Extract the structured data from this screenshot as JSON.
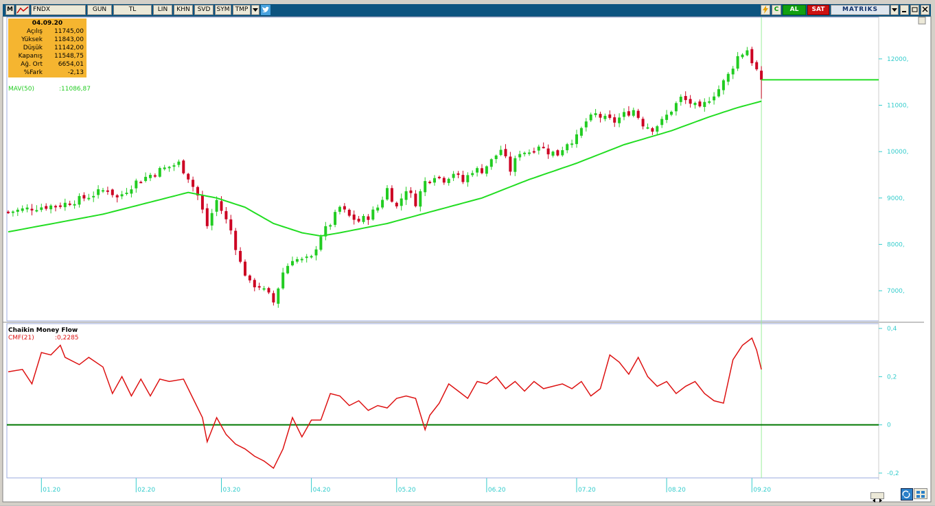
{
  "toolbar": {
    "symbol_box": "M",
    "symbol": "FNDX",
    "buttons": [
      "GUN",
      "TL",
      "LIN",
      "KHN",
      "SVD",
      "SYM",
      "TMP"
    ],
    "buy_label": "AL",
    "sell_label": "SAT",
    "brand": "MATRIKS",
    "c_label": "C"
  },
  "colors": {
    "background": "#ffffff",
    "up": "#22cc22",
    "down": "#cc0022",
    "ma": "#22dd22",
    "cmf": "#dd1111",
    "zero_line": "#007700",
    "axis_text": "#33cccc",
    "toolbar": "#0d5480",
    "info_box": "#f5b530"
  },
  "info_box": {
    "date": "04.09.20",
    "rows": [
      {
        "k": "Açılış",
        "v": "11745,00"
      },
      {
        "k": "Yüksek",
        "v": "11843,00"
      },
      {
        "k": "Düşük",
        "v": "11142,00"
      },
      {
        "k": "Kapanış",
        "v": "11548,75"
      },
      {
        "k": "Ağ. Ort",
        "v": "6654,01"
      },
      {
        "k": "%Fark",
        "v": "-2,13"
      }
    ]
  },
  "ma_label": {
    "name": "MAV(50)",
    "value": ":11086,87"
  },
  "indicator": {
    "title": "Chaikin Money Flow",
    "name": "CMF(21)",
    "value": ":0,2285"
  },
  "chart_data": [
    {
      "type": "candlestick",
      "symbol": "FNDX",
      "y_axis_ticks": [
        "7000,",
        "8000,",
        "9000,",
        "10000,",
        "11000,",
        "12000,"
      ],
      "ylim": [
        6350,
        12900
      ],
      "x_axis_ticks": [
        "01.20",
        "02.20",
        "03.20",
        "04.20",
        "05.20",
        "06.20",
        "07.20",
        "08.20",
        "09.20"
      ],
      "x_tick_index": [
        7,
        27,
        45,
        64,
        82,
        101,
        120,
        139,
        157
      ],
      "close_points": [
        [
          0,
          8700
        ],
        [
          6,
          8800
        ],
        [
          11,
          8850
        ],
        [
          16,
          9000
        ],
        [
          21,
          9200
        ],
        [
          23,
          9000
        ],
        [
          27,
          9350
        ],
        [
          32,
          9600
        ],
        [
          36,
          9750
        ],
        [
          38,
          9450
        ],
        [
          40,
          9050
        ],
        [
          42,
          8400
        ],
        [
          44,
          8950
        ],
        [
          47,
          8300
        ],
        [
          49,
          7600
        ],
        [
          51,
          7150
        ],
        [
          53,
          7100
        ],
        [
          55,
          6900
        ],
        [
          56,
          6750
        ],
        [
          58,
          7400
        ],
        [
          60,
          7700
        ],
        [
          62,
          7650
        ],
        [
          64,
          7700
        ],
        [
          66,
          8200
        ],
        [
          68,
          8450
        ],
        [
          70,
          8800
        ],
        [
          72,
          8600
        ],
        [
          74,
          8500
        ],
        [
          76,
          8600
        ],
        [
          78,
          8800
        ],
        [
          80,
          9200
        ],
        [
          82,
          8800
        ],
        [
          84,
          9200
        ],
        [
          86,
          8900
        ],
        [
          88,
          9350
        ],
        [
          90,
          9500
        ],
        [
          92,
          9400
        ],
        [
          94,
          9550
        ],
        [
          96,
          9350
        ],
        [
          98,
          9600
        ],
        [
          100,
          9600
        ],
        [
          102,
          9800
        ],
        [
          104,
          10050
        ],
        [
          106,
          9600
        ],
        [
          108,
          10000
        ],
        [
          110,
          10000
        ],
        [
          112,
          10150
        ],
        [
          114,
          10000
        ],
        [
          116,
          9950
        ],
        [
          118,
          10200
        ],
        [
          120,
          10300
        ],
        [
          122,
          10650
        ],
        [
          124,
          10800
        ],
        [
          126,
          10700
        ],
        [
          128,
          10650
        ],
        [
          130,
          10800
        ],
        [
          132,
          10900
        ],
        [
          134,
          10600
        ],
        [
          136,
          10500
        ],
        [
          138,
          10650
        ],
        [
          140,
          10900
        ],
        [
          142,
          11150
        ],
        [
          144,
          11050
        ],
        [
          146,
          10900
        ],
        [
          148,
          11150
        ],
        [
          150,
          11350
        ],
        [
          152,
          11650
        ],
        [
          154,
          12050
        ],
        [
          156,
          12200
        ],
        [
          157,
          11950
        ],
        [
          158,
          11750
        ],
        [
          159,
          11550
        ]
      ],
      "ma": {
        "name": "MAV(50)",
        "points": [
          [
            0,
            8270
          ],
          [
            20,
            8650
          ],
          [
            38,
            9120
          ],
          [
            44,
            9000
          ],
          [
            50,
            8800
          ],
          [
            56,
            8450
          ],
          [
            62,
            8250
          ],
          [
            66,
            8180
          ],
          [
            70,
            8250
          ],
          [
            80,
            8450
          ],
          [
            100,
            9000
          ],
          [
            110,
            9400
          ],
          [
            120,
            9750
          ],
          [
            130,
            10150
          ],
          [
            140,
            10450
          ],
          [
            148,
            10750
          ],
          [
            154,
            10950
          ],
          [
            159,
            11087
          ]
        ],
        "last": 11086.87
      },
      "last_close": 11548.75
    },
    {
      "type": "line",
      "series": [
        {
          "name": "CMF(21)",
          "points": [
            [
              0,
              0.22
            ],
            [
              3,
              0.23
            ],
            [
              5,
              0.17
            ],
            [
              7,
              0.3
            ],
            [
              9,
              0.29
            ],
            [
              11,
              0.33
            ],
            [
              12,
              0.28
            ],
            [
              15,
              0.25
            ],
            [
              17,
              0.28
            ],
            [
              20,
              0.24
            ],
            [
              22,
              0.13
            ],
            [
              24,
              0.2
            ],
            [
              26,
              0.12
            ],
            [
              28,
              0.19
            ],
            [
              30,
              0.12
            ],
            [
              32,
              0.19
            ],
            [
              34,
              0.18
            ],
            [
              37,
              0.19
            ],
            [
              39,
              0.11
            ],
            [
              41,
              0.03
            ],
            [
              42,
              -0.07
            ],
            [
              44,
              0.03
            ],
            [
              46,
              -0.04
            ],
            [
              48,
              -0.08
            ],
            [
              50,
              -0.1
            ],
            [
              52,
              -0.13
            ],
            [
              54,
              -0.15
            ],
            [
              56,
              -0.18
            ],
            [
              58,
              -0.1
            ],
            [
              60,
              0.03
            ],
            [
              62,
              -0.05
            ],
            [
              64,
              0.02
            ],
            [
              66,
              0.02
            ],
            [
              68,
              0.13
            ],
            [
              70,
              0.12
            ],
            [
              72,
              0.08
            ],
            [
              74,
              0.1
            ],
            [
              76,
              0.06
            ],
            [
              78,
              0.08
            ],
            [
              80,
              0.07
            ],
            [
              82,
              0.11
            ],
            [
              84,
              0.12
            ],
            [
              86,
              0.11
            ],
            [
              88,
              -0.02
            ],
            [
              89,
              0.04
            ],
            [
              91,
              0.09
            ],
            [
              93,
              0.17
            ],
            [
              95,
              0.14
            ],
            [
              97,
              0.11
            ],
            [
              99,
              0.18
            ],
            [
              101,
              0.17
            ],
            [
              103,
              0.2
            ],
            [
              105,
              0.15
            ],
            [
              107,
              0.18
            ],
            [
              109,
              0.14
            ],
            [
              111,
              0.18
            ],
            [
              113,
              0.15
            ],
            [
              115,
              0.16
            ],
            [
              117,
              0.17
            ],
            [
              119,
              0.15
            ],
            [
              121,
              0.18
            ],
            [
              123,
              0.12
            ],
            [
              125,
              0.15
            ],
            [
              127,
              0.29
            ],
            [
              129,
              0.26
            ],
            [
              131,
              0.21
            ],
            [
              133,
              0.28
            ],
            [
              135,
              0.2
            ],
            [
              137,
              0.16
            ],
            [
              139,
              0.18
            ],
            [
              141,
              0.13
            ],
            [
              143,
              0.16
            ],
            [
              145,
              0.18
            ],
            [
              147,
              0.13
            ],
            [
              149,
              0.1
            ],
            [
              151,
              0.09
            ],
            [
              153,
              0.27
            ],
            [
              155,
              0.33
            ],
            [
              157,
              0.36
            ],
            [
              158,
              0.31
            ],
            [
              159,
              0.23
            ]
          ]
        }
      ],
      "y_axis_ticks": [
        "0,4",
        "0,2",
        "0",
        "-0,2"
      ],
      "ylim": [
        -0.22,
        0.42
      ],
      "zero_line": 0,
      "last": 0.2285
    }
  ]
}
